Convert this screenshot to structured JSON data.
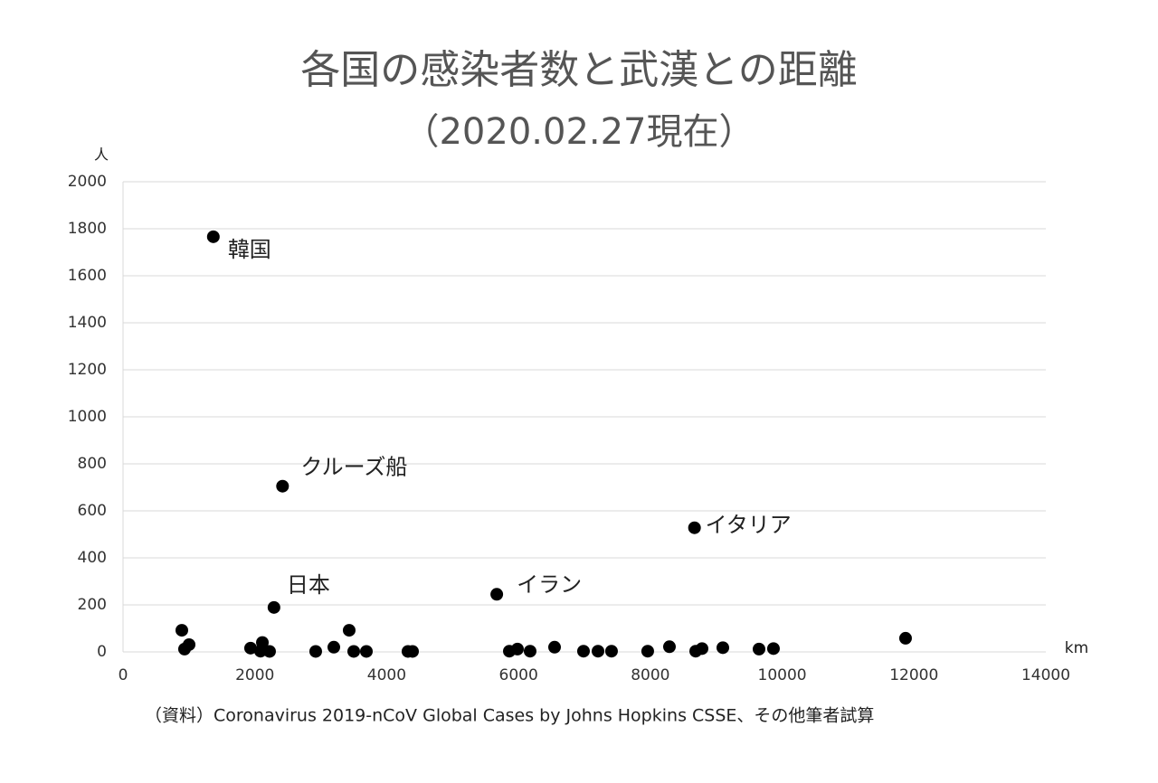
{
  "chart_data": {
    "type": "scatter",
    "title": "各国の感染者数と武漢との距離",
    "subtitle": "（2020.02.27現在）",
    "y_label": "人",
    "x_label": "km",
    "source": "（資料）Coronavirus 2019-nCoV Global Cases by Johns Hopkins CSSE、その他筆者試算",
    "color": "#000000",
    "grid": true,
    "xlim": [
      0,
      14000
    ],
    "ylim": [
      0,
      2000
    ],
    "xticks": [
      0,
      2000,
      4000,
      6000,
      8000,
      10000,
      12000,
      14000
    ],
    "yticks": [
      0,
      200,
      400,
      600,
      800,
      1000,
      1200,
      1400,
      1600,
      1800,
      2000
    ],
    "x": [
      1370,
      2420,
      8670,
      2290,
      5670,
      892,
      933,
      1002,
      1935,
      2114,
      2086,
      2223,
      2923,
      3198,
      3431,
      3500,
      3692,
      4323,
      4392,
      5861,
      5984,
      6176,
      6547,
      6986,
      7206,
      7411,
      7960,
      8290,
      8688,
      8784,
      9100,
      9649,
      9868,
      11872
    ],
    "values": [
      1766,
      705,
      528,
      189,
      245,
      92,
      12,
      31,
      16,
      40,
      3,
      2,
      2,
      20,
      92,
      2,
      2,
      2,
      2,
      3,
      12,
      3,
      20,
      3,
      3,
      3,
      3,
      22,
      3,
      14,
      18,
      12,
      14,
      58
    ],
    "point_labels": [
      "韓国",
      "クルーズ船",
      "イタリア",
      "日本",
      "イラン",
      null,
      null,
      null,
      null,
      null,
      null,
      null,
      null,
      null,
      null,
      null,
      null,
      null,
      null,
      null,
      null,
      null,
      null,
      null,
      null,
      null,
      null,
      null,
      null,
      null,
      null,
      null,
      null,
      null
    ]
  }
}
